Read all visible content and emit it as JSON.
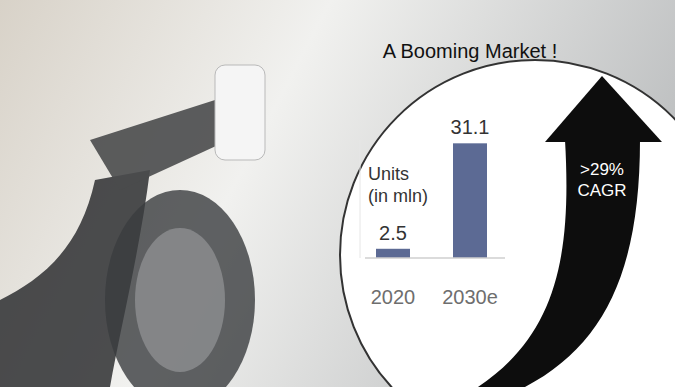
{
  "chart_data": {
    "type": "bar",
    "title": "A Booming Market !",
    "ylabel": "Units (in mln)",
    "annotation": ">29% CAGR",
    "categories": [
      "2020",
      "2030e"
    ],
    "values": [
      2.5,
      31.1
    ],
    "color": "#5c6a94",
    "ylim": [
      0,
      32
    ],
    "tick_labels": "x",
    "data_labels": true,
    "grid": false
  }
}
